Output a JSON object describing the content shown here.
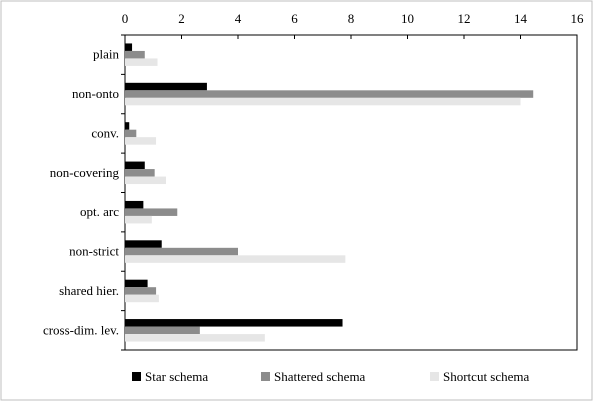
{
  "chart_data": {
    "type": "bar",
    "orientation": "horizontal",
    "categories": [
      "plain",
      "non-onto",
      "conv.",
      "non-covering",
      "opt. arc",
      "non-strict",
      "shared hier.",
      "cross-dim. lev."
    ],
    "series": [
      {
        "name": "Star schema",
        "color": "#000000",
        "values": [
          0.25,
          2.9,
          0.15,
          0.7,
          0.65,
          1.3,
          0.8,
          7.7
        ]
      },
      {
        "name": "Shattered schema",
        "color": "#8c8c8c",
        "values": [
          0.7,
          14.45,
          0.4,
          1.05,
          1.85,
          4.0,
          1.1,
          2.65
        ]
      },
      {
        "name": "Shortcut schema",
        "color": "#e6e6e6",
        "values": [
          1.15,
          14.0,
          1.1,
          1.45,
          0.95,
          7.8,
          1.2,
          4.95
        ]
      }
    ],
    "xlim": [
      0,
      16
    ],
    "xticks": [
      "0",
      "2",
      "4",
      "6",
      "8",
      "10",
      "12",
      "14",
      "16"
    ],
    "xaxis_position": "top",
    "grid": false,
    "legend": "bottom",
    "title": "",
    "xlabel": "",
    "ylabel": ""
  }
}
